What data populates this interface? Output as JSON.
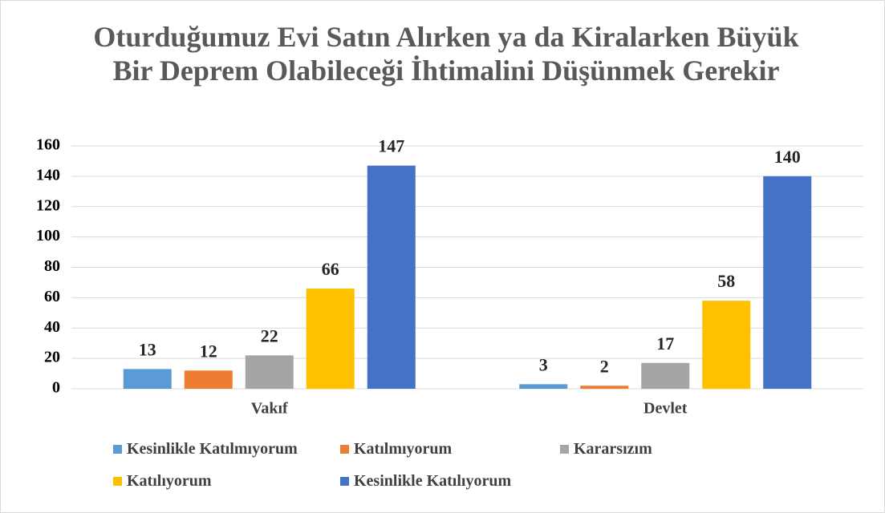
{
  "chart_data": {
    "type": "bar",
    "title": "Oturduğumuz Evi Satın Alırken ya da Kiralarken Büyük Bir Deprem Olabileceği İhtimalini Düşünmek Gerekir",
    "categories": [
      "Vakıf",
      "Devlet"
    ],
    "series": [
      {
        "name": "Kesinlikle Katılmıyorum",
        "color": "#5b9bd5",
        "values": [
          13,
          3
        ]
      },
      {
        "name": "Katılmıyorum",
        "color": "#ed7d31",
        "values": [
          12,
          2
        ]
      },
      {
        "name": "Kararsızım",
        "color": "#a5a5a5",
        "values": [
          22,
          17
        ]
      },
      {
        "name": "Katılıyorum",
        "color": "#ffc000",
        "values": [
          66,
          58
        ]
      },
      {
        "name": "Kesinlikle Katılıyorum",
        "color": "#4472c4",
        "values": [
          147,
          140
        ]
      }
    ],
    "ylim": [
      0,
      160
    ],
    "yticks": [
      0,
      20,
      40,
      60,
      80,
      100,
      120,
      140,
      160
    ],
    "grid": true,
    "legend": "bottom"
  }
}
